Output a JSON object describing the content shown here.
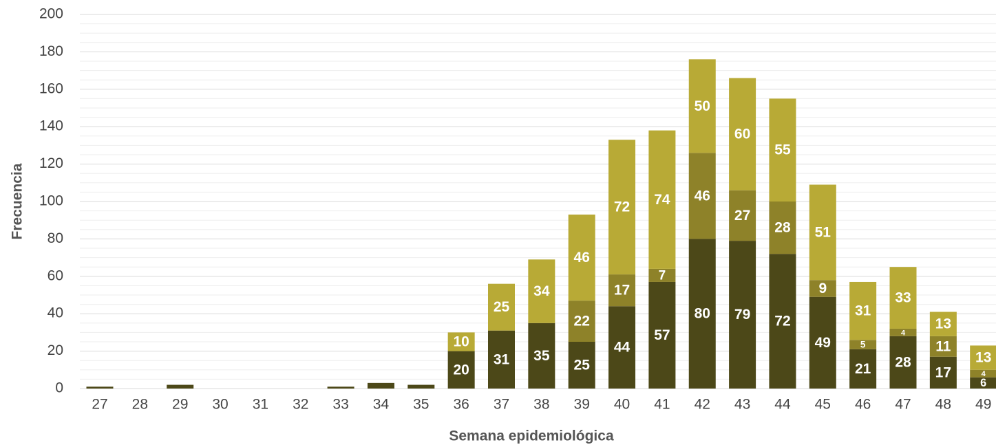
{
  "chart_data": {
    "type": "stacked_bar",
    "x_label": "Semana epidemiológica",
    "y_label": "Frecuencia",
    "categories": [
      "27",
      "28",
      "29",
      "30",
      "31",
      "32",
      "33",
      "34",
      "35",
      "36",
      "37",
      "38",
      "39",
      "40",
      "41",
      "42",
      "43",
      "44",
      "45",
      "46",
      "47",
      "48",
      "49"
    ],
    "series": [
      {
        "color": "#4c4818",
        "values": [
          1,
          0,
          2,
          0,
          0,
          0,
          1,
          3,
          2,
          20,
          31,
          35,
          25,
          44,
          57,
          80,
          79,
          72,
          49,
          21,
          28,
          17,
          6
        ]
      },
      {
        "color": "#8e8229",
        "values": [
          0,
          0,
          0,
          0,
          0,
          0,
          0,
          0,
          0,
          0,
          0,
          0,
          22,
          17,
          7,
          46,
          27,
          28,
          9,
          5,
          4,
          11,
          4
        ]
      },
      {
        "color": "#b8aa36",
        "values": [
          0,
          0,
          0,
          0,
          0,
          0,
          0,
          0,
          0,
          10,
          25,
          34,
          46,
          72,
          74,
          50,
          60,
          55,
          51,
          31,
          33,
          13,
          13
        ]
      }
    ],
    "ylim": [
      0,
      200
    ],
    "yticks": [
      0,
      20,
      40,
      60,
      80,
      100,
      120,
      140,
      160,
      180,
      200
    ],
    "grid": true
  }
}
